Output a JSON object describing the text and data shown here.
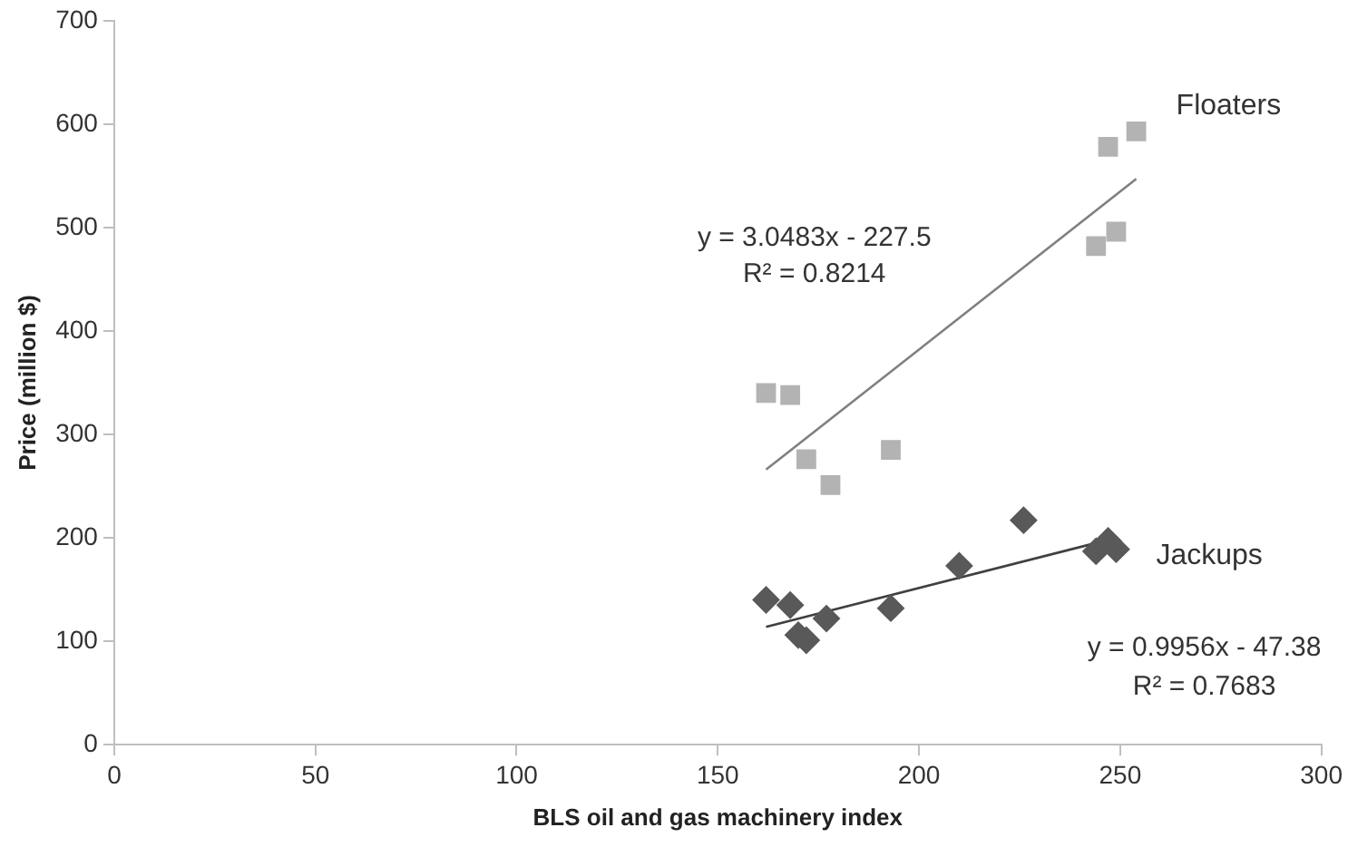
{
  "chart_data": {
    "type": "scatter",
    "xlabel": "BLS oil and gas machinery index",
    "ylabel": "Price (million $)",
    "xlim": [
      0,
      300
    ],
    "xticks": [
      0,
      50,
      100,
      150,
      200,
      250,
      300
    ],
    "ylim": [
      0,
      700
    ],
    "yticks": [
      0,
      100,
      200,
      300,
      400,
      500,
      600,
      700
    ],
    "grid": false,
    "legend": false,
    "series": [
      {
        "name": "Floaters",
        "color": "#b3b3b3",
        "marker": "square",
        "x": [
          162,
          168,
          172,
          178,
          193,
          247,
          254,
          244,
          249
        ],
        "values": [
          340,
          338,
          276,
          251,
          285,
          578,
          593,
          482,
          496
        ]
      },
      {
        "name": "Jackups",
        "color": "#595959",
        "marker": "diamond",
        "x": [
          162,
          168,
          170,
          172,
          177,
          193,
          210,
          226,
          244,
          247,
          249
        ],
        "values": [
          140,
          135,
          106,
          101,
          122,
          132,
          173,
          217,
          187,
          197,
          189
        ]
      },
      {
        "type": "line",
        "color": "#808080",
        "marker": "none",
        "x": [
          162,
          254
        ],
        "values": [
          266,
          547
        ]
      },
      {
        "type": "line",
        "color": "#404040",
        "marker": "none",
        "x": [
          162,
          247
        ],
        "values": [
          114,
          198
        ]
      }
    ],
    "annotations": [
      "y = 3.0483x - 227.5",
      "R² = 0.8214",
      "y = 0.9956x - 47.38",
      "R² = 0.7683"
    ]
  }
}
